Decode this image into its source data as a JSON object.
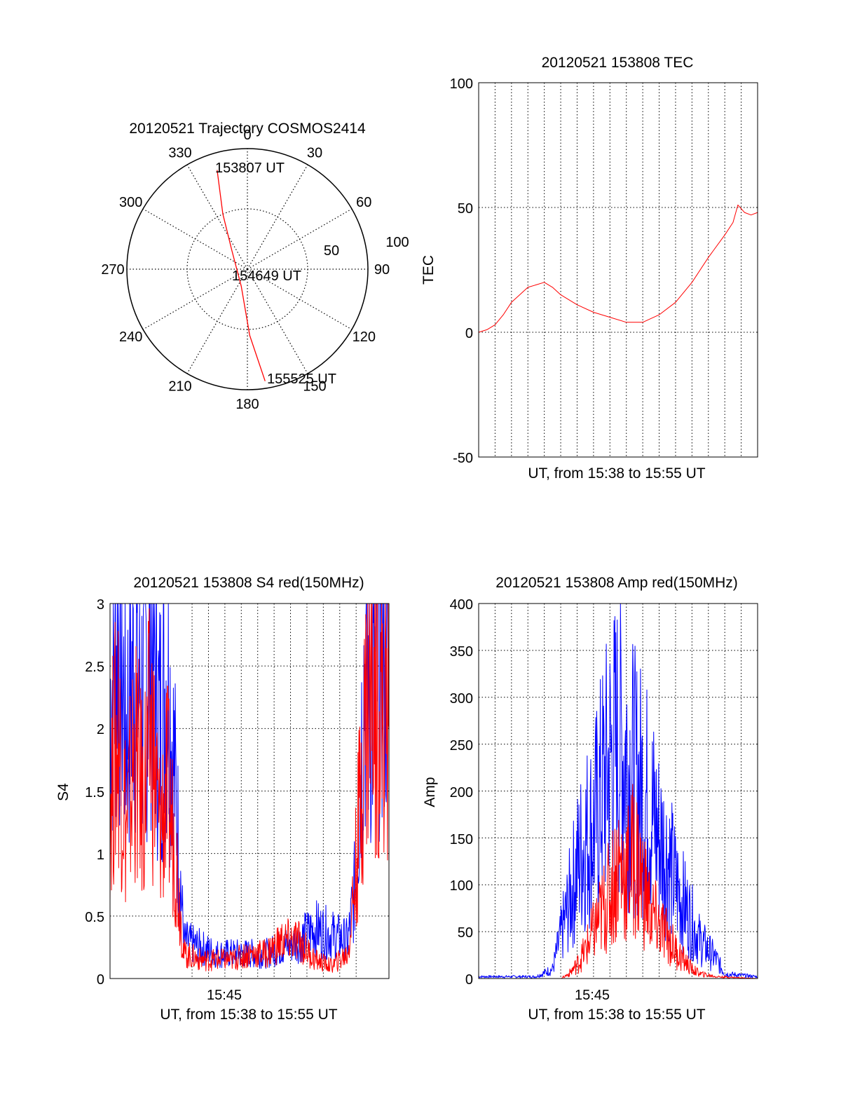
{
  "colors": {
    "red": "#ff0000",
    "blue": "#0000ff",
    "axes": "#000000",
    "grid": "#000000"
  },
  "polar": {
    "title": "20120521 Trajectory COSMOS2414",
    "azimuth_labels": [
      "0",
      "30",
      "60",
      "90",
      "120",
      "150",
      "180",
      "210",
      "240",
      "270",
      "300",
      "330"
    ],
    "radius_labels": [
      "50",
      "100"
    ],
    "start_label": "153807 UT",
    "mid_label": "154649 UT",
    "end_label": "155525 UT",
    "chart_data": {
      "type": "scatter",
      "radial_axis": "zenith angle",
      "rlim": [
        0,
        100
      ],
      "series": [
        {
          "color": "#ff0000",
          "points": [
            {
              "az": 343,
              "r": 86
            },
            {
              "az": 336,
              "r": 50
            },
            {
              "az": 320,
              "r": 20
            },
            {
              "az": 200,
              "r": 15
            },
            {
              "az": 178,
              "r": 55
            },
            {
              "az": 171,
              "r": 94
            }
          ]
        }
      ]
    }
  },
  "tec": {
    "title": "20120521 153808 TEC",
    "xlabel": "UT, from 15:38 to 15:55 UT",
    "ylabel": "TEC",
    "yticks": [
      "100",
      "50",
      "0",
      "-50"
    ],
    "chart_data": {
      "type": "line",
      "xlim": [
        38,
        55
      ],
      "ylim": [
        -50,
        100
      ],
      "grid": true,
      "x_unit": "minutes after 15:00 UT",
      "series": [
        {
          "color": "#ff0000",
          "points": [
            [
              38.0,
              0
            ],
            [
              38.5,
              1
            ],
            [
              39.0,
              3
            ],
            [
              39.5,
              7
            ],
            [
              40.0,
              12
            ],
            [
              40.5,
              15
            ],
            [
              41.0,
              18
            ],
            [
              41.5,
              19
            ],
            [
              42.0,
              20
            ],
            [
              42.5,
              18
            ],
            [
              43.0,
              15
            ],
            [
              44.0,
              11
            ],
            [
              45.0,
              8
            ],
            [
              46.0,
              6
            ],
            [
              47.0,
              4
            ],
            [
              47.5,
              4
            ],
            [
              48.0,
              4
            ],
            [
              49.0,
              7
            ],
            [
              50.0,
              12
            ],
            [
              51.0,
              20
            ],
            [
              52.0,
              30
            ],
            [
              53.0,
              39
            ],
            [
              53.5,
              44
            ],
            [
              53.8,
              51
            ],
            [
              54.2,
              48
            ],
            [
              54.6,
              47
            ],
            [
              55.0,
              48
            ]
          ]
        }
      ]
    }
  },
  "s4": {
    "title": "20120521 153808 S4 red(150MHz)",
    "xlabel": "UT, from 15:38 to 15:55 UT",
    "ylabel": "S4",
    "xtick_label": "15:45",
    "yticks": [
      "3",
      "2.5",
      "2",
      "1.5",
      "1",
      "0.5",
      "0"
    ],
    "chart_data": {
      "type": "line",
      "xlim": [
        38,
        55
      ],
      "ylim": [
        0,
        3
      ],
      "grid": true,
      "x_unit": "minutes after 15:00 UT",
      "series": [
        {
          "color": "#0000ff",
          "points": [
            [
              38.0,
              2.2
            ],
            [
              38.5,
              2.8
            ],
            [
              39.0,
              2.0
            ],
            [
              39.5,
              2.6
            ],
            [
              40.0,
              2.2
            ],
            [
              40.5,
              2.9
            ],
            [
              41.0,
              2.0
            ],
            [
              41.5,
              2.5
            ],
            [
              42.0,
              1.5
            ],
            [
              42.5,
              0.3
            ],
            [
              43.5,
              0.25
            ],
            [
              44.5,
              0.2
            ],
            [
              45.5,
              0.2
            ],
            [
              46.5,
              0.2
            ],
            [
              47.5,
              0.2
            ],
            [
              48.5,
              0.25
            ],
            [
              49.5,
              0.3
            ],
            [
              50.5,
              0.4
            ],
            [
              51.5,
              0.35
            ],
            [
              52.5,
              0.3
            ],
            [
              53.0,
              0.8
            ],
            [
              53.5,
              2.5
            ],
            [
              54.0,
              2.2
            ],
            [
              54.5,
              2.8
            ],
            [
              55.0,
              2.5
            ]
          ]
        },
        {
          "color": "#ff0000",
          "points": [
            [
              38.0,
              1.5
            ],
            [
              38.5,
              2.0
            ],
            [
              39.0,
              1.2
            ],
            [
              39.5,
              1.8
            ],
            [
              40.0,
              1.4
            ],
            [
              40.5,
              2.0
            ],
            [
              41.0,
              1.2
            ],
            [
              41.5,
              1.5
            ],
            [
              42.0,
              1.0
            ],
            [
              42.5,
              0.2
            ],
            [
              43.5,
              0.15
            ],
            [
              44.5,
              0.15
            ],
            [
              45.5,
              0.15
            ],
            [
              46.5,
              0.2
            ],
            [
              47.5,
              0.2
            ],
            [
              48.5,
              0.3
            ],
            [
              49.5,
              0.3
            ],
            [
              50.5,
              0.15
            ],
            [
              51.5,
              0.1
            ],
            [
              52.5,
              0.2
            ],
            [
              53.0,
              0.9
            ],
            [
              53.5,
              2.0
            ],
            [
              54.0,
              2.5
            ],
            [
              54.5,
              2.2
            ],
            [
              55.0,
              2.0
            ]
          ]
        }
      ]
    }
  },
  "amp": {
    "title": "20120521 153808 Amp red(150MHz)",
    "xlabel": "UT, from 15:38 to 15:55 UT",
    "ylabel": "Amp",
    "xtick_label": "15:45",
    "yticks": [
      "400",
      "350",
      "300",
      "250",
      "200",
      "150",
      "100",
      "50",
      "0"
    ],
    "chart_data": {
      "type": "line",
      "xlim": [
        38,
        55
      ],
      "ylim": [
        0,
        400
      ],
      "grid": true,
      "x_unit": "minutes after 15:00 UT",
      "series": [
        {
          "color": "#0000ff",
          "points": [
            [
              38.0,
              2
            ],
            [
              41.5,
              2
            ],
            [
              42.5,
              10
            ],
            [
              43.5,
              80
            ],
            [
              44.0,
              120
            ],
            [
              44.5,
              150
            ],
            [
              45.0,
              160
            ],
            [
              45.5,
              200
            ],
            [
              46.0,
              230
            ],
            [
              46.5,
              250
            ],
            [
              47.0,
              240
            ],
            [
              47.5,
              210
            ],
            [
              48.0,
              200
            ],
            [
              48.5,
              180
            ],
            [
              49.0,
              150
            ],
            [
              49.5,
              130
            ],
            [
              50.0,
              100
            ],
            [
              50.5,
              80
            ],
            [
              51.0,
              60
            ],
            [
              51.5,
              40
            ],
            [
              52.0,
              30
            ],
            [
              52.5,
              20
            ],
            [
              53.0,
              5
            ],
            [
              55.0,
              2
            ]
          ]
        },
        {
          "color": "#ff0000",
          "points": [
            [
              38.0,
              0
            ],
            [
              43.0,
              0
            ],
            [
              43.5,
              5
            ],
            [
              44.0,
              15
            ],
            [
              44.5,
              30
            ],
            [
              45.0,
              50
            ],
            [
              45.5,
              70
            ],
            [
              46.0,
              90
            ],
            [
              46.5,
              120
            ],
            [
              47.0,
              110
            ],
            [
              47.5,
              130
            ],
            [
              48.0,
              100
            ],
            [
              48.5,
              70
            ],
            [
              49.0,
              55
            ],
            [
              49.5,
              45
            ],
            [
              50.0,
              30
            ],
            [
              50.5,
              20
            ],
            [
              51.0,
              10
            ],
            [
              51.5,
              5
            ],
            [
              52.5,
              2
            ],
            [
              55.0,
              0
            ]
          ]
        }
      ]
    }
  }
}
